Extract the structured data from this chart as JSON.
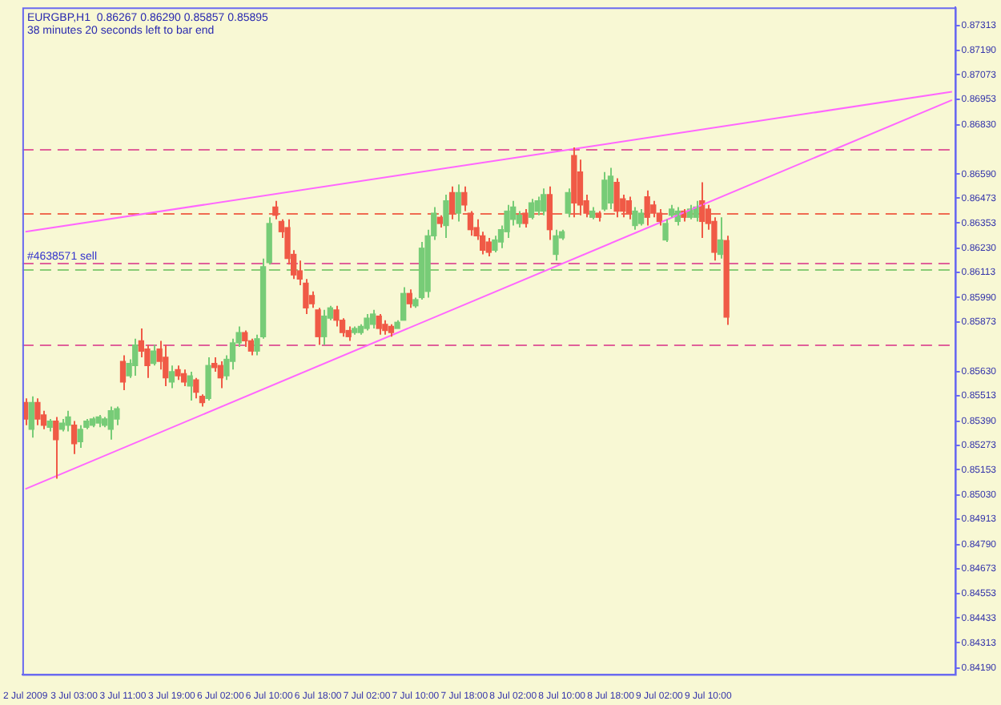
{
  "chart_data": {
    "type": "candlestick",
    "title": "EURGBP,H1  0.86267 0.86290 0.85857 0.85895",
    "subtitle": "38 minutes 20 seconds left to bar end",
    "categories": [
      "2 Jul 2009",
      null,
      null,
      null,
      null,
      null,
      null,
      null,
      "3 Jul 03:00",
      null,
      null,
      null,
      null,
      null,
      null,
      null,
      "3 Jul 11:00",
      null,
      null,
      null,
      null,
      null,
      null,
      null,
      "3 Jul 19:00",
      null,
      null,
      null,
      null,
      null,
      null,
      null,
      "6 Jul 02:00",
      null,
      null,
      null,
      null,
      null,
      null,
      null,
      "6 Jul 10:00",
      null,
      null,
      null,
      null,
      null,
      null,
      null,
      "6 Jul 18:00",
      null,
      null,
      null,
      null,
      null,
      null,
      null,
      "7 Jul 02:00",
      null,
      null,
      null,
      null,
      null,
      null,
      null,
      "7 Jul 10:00",
      null,
      null,
      null,
      null,
      null,
      null,
      null,
      "7 Jul 18:00",
      null,
      null,
      null,
      null,
      null,
      null,
      null,
      "8 Jul 02:00",
      null,
      null,
      null,
      null,
      null,
      null,
      null,
      "8 Jul 10:00",
      null,
      null,
      null,
      null,
      null,
      null,
      null,
      "8 Jul 18:00",
      null,
      null,
      null,
      null,
      null,
      null,
      null,
      "9 Jul 02:00",
      null,
      null,
      null,
      null,
      null,
      null,
      null,
      "9 Jul 10:00",
      null,
      null,
      null,
      null,
      null,
      null,
      null,
      null,
      null,
      null,
      null,
      null,
      null,
      null,
      null,
      null,
      null,
      null,
      null,
      null,
      null,
      null,
      null,
      null,
      null,
      null,
      null,
      null,
      null,
      null,
      null,
      null,
      null,
      null,
      null,
      null,
      null,
      null,
      null,
      null
    ],
    "ohlc": [
      [
        0.8548,
        0.855,
        0.8537,
        0.854
      ],
      [
        0.8535,
        0.8551,
        0.8531,
        0.8548
      ],
      [
        0.8548,
        0.855,
        0.8537,
        0.854
      ],
      [
        0.8542,
        0.8544,
        0.8535,
        0.8537
      ],
      [
        0.8536,
        0.854,
        0.8534,
        0.8539
      ],
      [
        0.8539,
        0.8541,
        0.8511,
        0.853
      ],
      [
        0.8535,
        0.854,
        0.8534,
        0.8538
      ],
      [
        0.8537,
        0.8544,
        0.8534,
        0.8541
      ],
      [
        0.8537,
        0.8539,
        0.8523,
        0.8528
      ],
      [
        0.8529,
        0.8537,
        0.8526,
        0.8535
      ],
      [
        0.8536,
        0.854,
        0.8535,
        0.8539
      ],
      [
        0.8537,
        0.8541,
        0.8536,
        0.854
      ],
      [
        0.8538,
        0.8542,
        0.8536,
        0.8541
      ],
      [
        0.8537,
        0.8541,
        0.8536,
        0.854
      ],
      [
        0.8535,
        0.8546,
        0.853,
        0.8544
      ],
      [
        0.854,
        0.8546,
        0.8537,
        0.8545
      ],
      [
        0.8568,
        0.8571,
        0.8554,
        0.8558
      ],
      [
        0.8561,
        0.8569,
        0.856,
        0.8567
      ],
      [
        0.8566,
        0.8579,
        0.8561,
        0.8576
      ],
      [
        0.8578,
        0.8584,
        0.857,
        0.8573
      ],
      [
        0.8574,
        0.8576,
        0.856,
        0.8566
      ],
      [
        0.8567,
        0.8576,
        0.8566,
        0.8573
      ],
      [
        0.8574,
        0.8578,
        0.8564,
        0.8568
      ],
      [
        0.857,
        0.8576,
        0.8556,
        0.856
      ],
      [
        0.8558,
        0.8566,
        0.8555,
        0.8563
      ],
      [
        0.8564,
        0.8566,
        0.8559,
        0.8561
      ],
      [
        0.8562,
        0.8564,
        0.8556,
        0.8558
      ],
      [
        0.8556,
        0.8563,
        0.8549,
        0.8561
      ],
      [
        0.8559,
        0.856,
        0.855,
        0.8553
      ],
      [
        0.8551,
        0.8552,
        0.8546,
        0.8548
      ],
      [
        0.855,
        0.857,
        0.8549,
        0.8566
      ],
      [
        0.8567,
        0.857,
        0.8563,
        0.8565
      ],
      [
        0.8566,
        0.8568,
        0.8555,
        0.856
      ],
      [
        0.8561,
        0.8571,
        0.8559,
        0.8569
      ],
      [
        0.8568,
        0.8579,
        0.8564,
        0.8577
      ],
      [
        0.8577,
        0.8585,
        0.8575,
        0.8582
      ],
      [
        0.8582,
        0.8583,
        0.8575,
        0.8578
      ],
      [
        0.8578,
        0.8579,
        0.8571,
        0.8573
      ],
      [
        0.8573,
        0.8581,
        0.8571,
        0.8579
      ],
      [
        0.858,
        0.8618,
        0.8579,
        0.8614
      ],
      [
        0.8616,
        0.8638,
        0.8615,
        0.8635
      ],
      [
        0.8643,
        0.8646,
        0.8637,
        0.8639
      ],
      [
        0.8636,
        0.8637,
        0.8628,
        0.8631
      ],
      [
        0.8633,
        0.8637,
        0.8615,
        0.8618
      ],
      [
        0.862,
        0.8622,
        0.8608,
        0.861
      ],
      [
        0.8612,
        0.8617,
        0.8605,
        0.8608
      ],
      [
        0.8606,
        0.8608,
        0.8591,
        0.8594
      ],
      [
        0.86,
        0.8602,
        0.8594,
        0.8596
      ],
      [
        0.8593,
        0.8594,
        0.8576,
        0.858
      ],
      [
        0.858,
        0.8593,
        0.8576,
        0.859
      ],
      [
        0.8589,
        0.8595,
        0.8588,
        0.8594
      ],
      [
        0.8593,
        0.8595,
        0.8585,
        0.8588
      ],
      [
        0.8588,
        0.8589,
        0.858,
        0.8582
      ],
      [
        0.8583,
        0.8585,
        0.8578,
        0.858
      ],
      [
        0.8582,
        0.8585,
        0.8581,
        0.8584
      ],
      [
        0.8582,
        0.8586,
        0.8581,
        0.8585
      ],
      [
        0.8584,
        0.8591,
        0.8583,
        0.8589
      ],
      [
        0.8586,
        0.8593,
        0.8584,
        0.8591
      ],
      [
        0.859,
        0.8591,
        0.8581,
        0.8584
      ],
      [
        0.8586,
        0.8588,
        0.8581,
        0.8583
      ],
      [
        0.8585,
        0.8586,
        0.858,
        0.8582
      ],
      [
        0.8584,
        0.8588,
        0.8584,
        0.8587
      ],
      [
        0.8588,
        0.8604,
        0.8588,
        0.8601
      ],
      [
        0.8601,
        0.8603,
        0.8594,
        0.8596
      ],
      [
        0.8595,
        0.8599,
        0.8594,
        0.8598
      ],
      [
        0.8599,
        0.8626,
        0.8598,
        0.8623
      ],
      [
        0.8602,
        0.8632,
        0.8599,
        0.8629
      ],
      [
        0.8629,
        0.8643,
        0.8627,
        0.864
      ],
      [
        0.8638,
        0.8639,
        0.8633,
        0.8635
      ],
      [
        0.8634,
        0.8649,
        0.8628,
        0.8646
      ],
      [
        0.865,
        0.8653,
        0.8637,
        0.864
      ],
      [
        0.864,
        0.8654,
        0.8636,
        0.865
      ],
      [
        0.865,
        0.8653,
        0.8641,
        0.8644
      ],
      [
        0.864,
        0.8641,
        0.8629,
        0.8632
      ],
      [
        0.8633,
        0.8637,
        0.8627,
        0.8629
      ],
      [
        0.8629,
        0.8631,
        0.862,
        0.8622
      ],
      [
        0.8626,
        0.8628,
        0.8619,
        0.8621
      ],
      [
        0.8622,
        0.8629,
        0.8621,
        0.8627
      ],
      [
        0.8626,
        0.8634,
        0.8623,
        0.8632
      ],
      [
        0.8631,
        0.8644,
        0.8628,
        0.8641
      ],
      [
        0.8637,
        0.8646,
        0.8634,
        0.8643
      ],
      [
        0.8635,
        0.8641,
        0.8633,
        0.8639
      ],
      [
        0.864,
        0.8642,
        0.8633,
        0.8635
      ],
      [
        0.8638,
        0.8647,
        0.8637,
        0.8645
      ],
      [
        0.8641,
        0.8648,
        0.8639,
        0.8646
      ],
      [
        0.8641,
        0.8652,
        0.8639,
        0.8649
      ],
      [
        0.8649,
        0.8653,
        0.8627,
        0.8632
      ],
      [
        0.862,
        0.8632,
        0.8617,
        0.8629
      ],
      [
        0.8628,
        0.8632,
        0.8627,
        0.8631
      ],
      [
        0.864,
        0.8652,
        0.8638,
        0.865
      ],
      [
        0.8668,
        0.8672,
        0.8638,
        0.8645
      ],
      [
        0.866,
        0.8666,
        0.8639,
        0.8644
      ],
      [
        0.8646,
        0.8649,
        0.8638,
        0.864
      ],
      [
        0.8638,
        0.8643,
        0.8637,
        0.8641
      ],
      [
        0.864,
        0.8641,
        0.8636,
        0.8638
      ],
      [
        0.8642,
        0.866,
        0.8641,
        0.8656
      ],
      [
        0.8645,
        0.8662,
        0.8642,
        0.8658
      ],
      [
        0.8655,
        0.8657,
        0.8638,
        0.8641
      ],
      [
        0.8647,
        0.8649,
        0.8638,
        0.8641
      ],
      [
        0.8646,
        0.8648,
        0.8637,
        0.864
      ],
      [
        0.8634,
        0.8643,
        0.8632,
        0.8641
      ],
      [
        0.8635,
        0.8642,
        0.8634,
        0.864
      ],
      [
        0.8648,
        0.8651,
        0.8634,
        0.8638
      ],
      [
        0.8644,
        0.8646,
        0.8638,
        0.864
      ],
      [
        0.864,
        0.8642,
        0.8634,
        0.8636
      ],
      [
        0.8627,
        0.8637,
        0.8626,
        0.8635
      ],
      [
        0.8639,
        0.8644,
        0.8638,
        0.8642
      ],
      [
        0.8636,
        0.8643,
        0.8634,
        0.8641
      ],
      [
        0.8641,
        0.8642,
        0.8636,
        0.8638
      ],
      [
        0.8638,
        0.8644,
        0.8637,
        0.8642
      ],
      [
        0.8638,
        0.8646,
        0.8636,
        0.8643
      ],
      [
        0.8646,
        0.8655,
        0.8628,
        0.8636
      ],
      [
        0.8642,
        0.8644,
        0.8632,
        0.8635
      ],
      [
        0.8636,
        0.8638,
        0.8617,
        0.8621
      ],
      [
        0.862,
        0.8638,
        0.8618,
        0.8627
      ],
      [
        0.86267,
        0.8629,
        0.85857,
        0.85895
      ],
      null,
      null,
      null,
      null,
      null,
      null,
      null,
      null,
      null,
      null,
      null,
      null,
      null,
      null,
      null,
      null,
      null,
      null,
      null,
      null,
      null,
      null,
      null,
      null,
      null,
      null,
      null,
      null,
      null,
      null,
      null,
      null,
      null,
      null,
      null,
      null,
      null
    ],
    "colors": [
      "#f05a46",
      "#77cc77",
      "#f05a46",
      "#f05a46",
      "#77cc77",
      "#f05a46",
      "#77cc77",
      "#77cc77",
      "#f05a46",
      "#77cc77",
      "#77cc77",
      "#77cc77",
      "#77cc77",
      "#77cc77",
      "#77cc77",
      "#77cc77",
      "#f05a46",
      "#77cc77",
      "#77cc77",
      "#f05a46",
      "#f05a46",
      "#77cc77",
      "#f05a46",
      "#f05a46",
      "#77cc77",
      "#f05a46",
      "#f05a46",
      "#77cc77",
      "#f05a46",
      "#f05a46",
      "#77cc77",
      "#f05a46",
      "#f05a46",
      "#77cc77",
      "#77cc77",
      "#77cc77",
      "#f05a46",
      "#f05a46",
      "#77cc77",
      "#77cc77",
      "#77cc77",
      "#f05a46",
      "#f05a46",
      "#f05a46",
      "#f05a46",
      "#f05a46",
      "#f05a46",
      "#f05a46",
      "#f05a46",
      "#77cc77",
      "#77cc77",
      "#f05a46",
      "#f05a46",
      "#f05a46",
      "#77cc77",
      "#77cc77",
      "#77cc77",
      "#77cc77",
      "#f05a46",
      "#f05a46",
      "#f05a46",
      "#77cc77",
      "#77cc77",
      "#f05a46",
      "#77cc77",
      "#77cc77",
      "#77cc77",
      "#77cc77",
      "#f05a46",
      "#77cc77",
      "#f05a46",
      "#77cc77",
      "#f05a46",
      "#f05a46",
      "#f05a46",
      "#f05a46",
      "#f05a46",
      "#77cc77",
      "#77cc77",
      "#77cc77",
      "#77cc77",
      "#77cc77",
      "#f05a46",
      "#77cc77",
      "#77cc77",
      "#77cc77",
      "#f05a46",
      "#77cc77",
      "#77cc77",
      "#77cc77",
      "#f05a46",
      "#f05a46",
      "#f05a46",
      "#77cc77",
      "#f05a46",
      "#77cc77",
      "#77cc77",
      "#f05a46",
      "#f05a46",
      "#f05a46",
      "#77cc77",
      "#77cc77",
      "#f05a46",
      "#f05a46",
      "#f05a46",
      "#77cc77",
      "#77cc77",
      "#77cc77",
      "#f05a46",
      "#77cc77",
      "#77cc77",
      "#f05a46",
      "#f05a46",
      "#f05a46",
      "#77cc77",
      "#f05a46",
      null,
      null,
      null,
      null,
      null,
      null,
      null,
      null,
      null,
      null,
      null,
      null,
      null,
      null,
      null,
      null,
      null,
      null,
      null,
      null,
      null,
      null,
      null,
      null,
      null,
      null,
      null,
      null,
      null,
      null,
      null,
      null,
      null,
      null,
      null,
      null,
      null
    ],
    "series": [
      {
        "type": "line",
        "color": "#ff66ff",
        "values": [
          0.8506,
          null,
          null,
          null,
          null,
          null,
          null,
          null,
          null,
          null,
          null,
          null,
          null,
          null,
          null,
          null,
          null,
          null,
          null,
          null,
          null,
          null,
          null,
          null,
          null,
          null,
          null,
          null,
          null,
          null,
          null,
          null,
          null,
          null,
          null,
          null,
          null,
          null,
          null,
          null,
          null,
          null,
          null,
          null,
          null,
          null,
          null,
          null,
          null,
          null,
          null,
          null,
          null,
          null,
          null,
          null,
          null,
          null,
          null,
          null,
          null,
          null,
          null,
          null,
          null,
          null,
          null,
          null,
          null,
          null,
          null,
          null,
          null,
          null,
          null,
          null,
          null,
          null,
          null,
          null,
          null,
          null,
          null,
          null,
          null,
          null,
          null,
          null,
          null,
          null,
          null,
          null,
          null,
          null,
          null,
          null,
          null,
          null,
          null,
          null,
          null,
          null,
          null,
          null,
          null,
          null,
          null,
          null,
          null,
          null,
          null,
          null,
          null,
          null,
          null,
          null,
          null,
          null,
          null,
          null,
          null,
          null,
          null,
          null,
          null,
          null,
          null,
          null,
          null,
          null,
          null,
          null,
          null,
          null,
          null,
          null,
          null,
          null,
          null,
          null,
          null,
          null,
          null,
          null,
          null,
          null,
          null,
          null,
          null,
          null,
          null,
          null,
          0.8695
        ]
      },
      {
        "type": "line",
        "color": "#ff66ff",
        "values": [
          0.8631,
          null,
          null,
          null,
          null,
          null,
          null,
          null,
          null,
          null,
          null,
          null,
          null,
          null,
          null,
          null,
          null,
          null,
          null,
          null,
          null,
          null,
          null,
          null,
          null,
          null,
          null,
          null,
          null,
          null,
          null,
          null,
          null,
          null,
          null,
          null,
          null,
          null,
          null,
          null,
          null,
          null,
          null,
          null,
          null,
          null,
          null,
          null,
          null,
          null,
          null,
          null,
          null,
          null,
          null,
          null,
          null,
          null,
          null,
          null,
          null,
          null,
          null,
          null,
          null,
          null,
          null,
          null,
          null,
          null,
          null,
          null,
          null,
          null,
          null,
          null,
          null,
          null,
          null,
          null,
          null,
          null,
          null,
          null,
          null,
          null,
          null,
          null,
          null,
          null,
          null,
          null,
          null,
          null,
          null,
          null,
          null,
          null,
          null,
          null,
          null,
          null,
          null,
          null,
          null,
          null,
          null,
          null,
          null,
          null,
          null,
          null,
          null,
          null,
          null,
          null,
          null,
          null,
          null,
          null,
          null,
          null,
          null,
          null,
          null,
          null,
          null,
          null,
          null,
          null,
          null,
          null,
          null,
          null,
          null,
          null,
          null,
          null,
          null,
          null,
          null,
          null,
          null,
          null,
          null,
          null,
          null,
          null,
          null,
          null,
          null,
          null,
          0.8699
        ]
      }
    ],
    "ref_lines": [
      {
        "axis": "y",
        "value": 0.8671,
        "color": "#e0609a",
        "line_style": "dashed"
      },
      {
        "axis": "y",
        "value": 0.864,
        "color": "#f06a50",
        "line_style": "dashed"
      },
      {
        "axis": "y",
        "value": 0.8616,
        "color": "#e0609a",
        "line_style": "dashed",
        "label": "#4638571 sell"
      },
      {
        "axis": "y",
        "value": 0.8613,
        "color": "#88cc77",
        "line_style": "dashed"
      },
      {
        "axis": "y",
        "value": 0.8576,
        "color": "#e0609a",
        "line_style": "dashed"
      }
    ],
    "ylim": [
      0.8416,
      0.874
    ],
    "yticks": [
      0.87313,
      {
        "value": 0.8719,
        "label": "0.87190"
      },
      0.87073,
      0.86953,
      {
        "value": 0.8683,
        "label": "0.86830"
      },
      {
        "value": 0.8659,
        "label": "0.86590"
      },
      0.86473,
      0.86353,
      {
        "value": 0.8623,
        "label": "0.86230"
      },
      0.86113,
      {
        "value": 0.8599,
        "label": "0.85990"
      },
      0.85873,
      {
        "value": 0.8563,
        "label": "0.85630"
      },
      0.85513,
      {
        "value": 0.8539,
        "label": "0.85390"
      },
      0.85273,
      0.85153,
      {
        "value": 0.8503,
        "label": "0.85030"
      },
      0.84913,
      {
        "value": 0.8479,
        "label": "0.84790"
      },
      0.84673,
      0.84553,
      0.84433,
      0.84313,
      {
        "value": 0.8419,
        "label": "0.84190"
      }
    ]
  }
}
